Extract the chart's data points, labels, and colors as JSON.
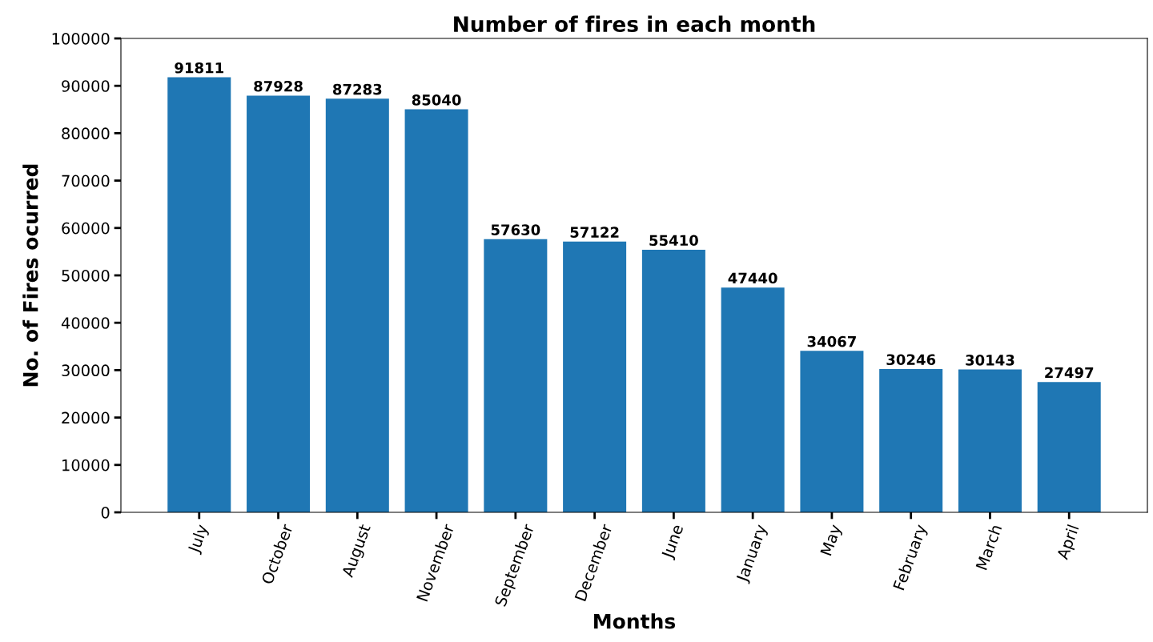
{
  "chart_data": {
    "type": "bar",
    "title": "Number of fires in each month",
    "xlabel": "Months",
    "ylabel": "No. of Fires ocurred",
    "categories": [
      "July",
      "October",
      "August",
      "November",
      "September",
      "December",
      "June",
      "January",
      "May",
      "February",
      "March",
      "April"
    ],
    "values": [
      91811,
      87928,
      87283,
      85040,
      57630,
      57122,
      55410,
      47440,
      34067,
      30246,
      30143,
      27497
    ],
    "color": "#1f77b4",
    "ylim": [
      0,
      100000
    ],
    "yticks": [
      0,
      10000,
      20000,
      30000,
      40000,
      50000,
      60000,
      70000,
      80000,
      90000,
      100000
    ],
    "grid": false,
    "data_labels": true
  }
}
